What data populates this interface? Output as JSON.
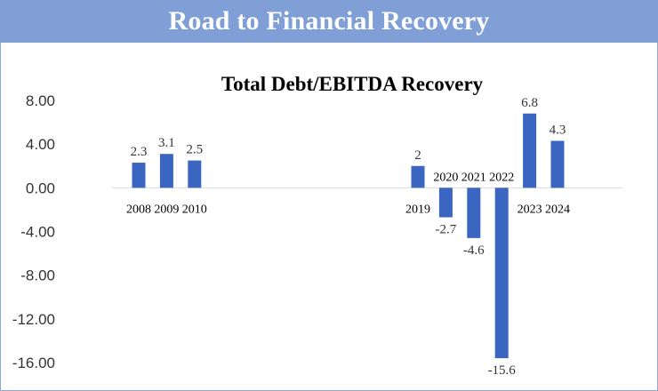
{
  "banner": {
    "title": "Road to Financial Recovery"
  },
  "colors": {
    "banner": "#7f9fd6",
    "bar": "#3a66c1",
    "border": "#8ea9d9"
  },
  "chart_data": {
    "type": "bar",
    "title": "Total Debt/EBITDA Recovery",
    "xlabel": "",
    "ylabel": "",
    "ylim": [
      -16,
      8
    ],
    "yticks": [
      8,
      4,
      0,
      -4,
      -8,
      -12,
      -16
    ],
    "ytick_labels": [
      "8.00",
      "4.00",
      "0.00",
      "-4.00",
      "-8.00",
      "-12.00",
      "-16.00"
    ],
    "grid": false,
    "categories": [
      "2008",
      "2009",
      "2010",
      "",
      "",
      "",
      "",
      "",
      "",
      "",
      "2019",
      "2020",
      "2021",
      "2022",
      "2023",
      "2024"
    ],
    "values": [
      2.3,
      3.1,
      2.5,
      null,
      null,
      null,
      null,
      null,
      null,
      null,
      2,
      -2.7,
      -4.6,
      -15.6,
      6.8,
      4.3
    ],
    "data_labels": [
      "2.3",
      "3.1",
      "2.5",
      "",
      "",
      "",
      "",
      "",
      "",
      "",
      "2",
      "-2.7",
      "-4.6",
      "-15.6",
      "6.8",
      "4.3"
    ]
  }
}
